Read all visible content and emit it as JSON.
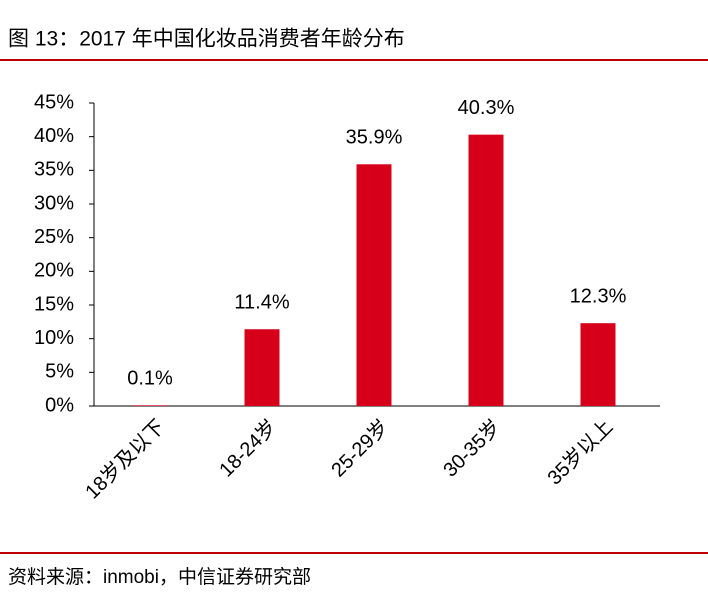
{
  "chart_data": {
    "type": "bar",
    "title": "图 13：2017 年中国化妆品消费者年龄分布",
    "source": "资料来源：inmobi，中信证券研究部",
    "categories": [
      "18岁及以下",
      "18-24岁",
      "25-29岁",
      "30-35岁",
      "35岁以上"
    ],
    "values": [
      0.1,
      11.4,
      35.9,
      40.3,
      12.3
    ],
    "value_labels": [
      "0.1%",
      "11.4%",
      "35.9%",
      "40.3%",
      "12.3%"
    ],
    "color": "#d7001b",
    "ylim": [
      0,
      45
    ],
    "yticks": [
      {
        "value": 0,
        "label": "0%"
      },
      {
        "value": 5,
        "label": "5%"
      },
      {
        "value": 10,
        "label": "10%"
      },
      {
        "value": 15,
        "label": "15%"
      },
      {
        "value": 20,
        "label": "20%"
      },
      {
        "value": 25,
        "label": "25%"
      },
      {
        "value": 30,
        "label": "30%"
      },
      {
        "value": 35,
        "label": "35%"
      },
      {
        "value": 40,
        "label": "40%"
      },
      {
        "value": 45,
        "label": "45%"
      }
    ],
    "grid": false
  }
}
